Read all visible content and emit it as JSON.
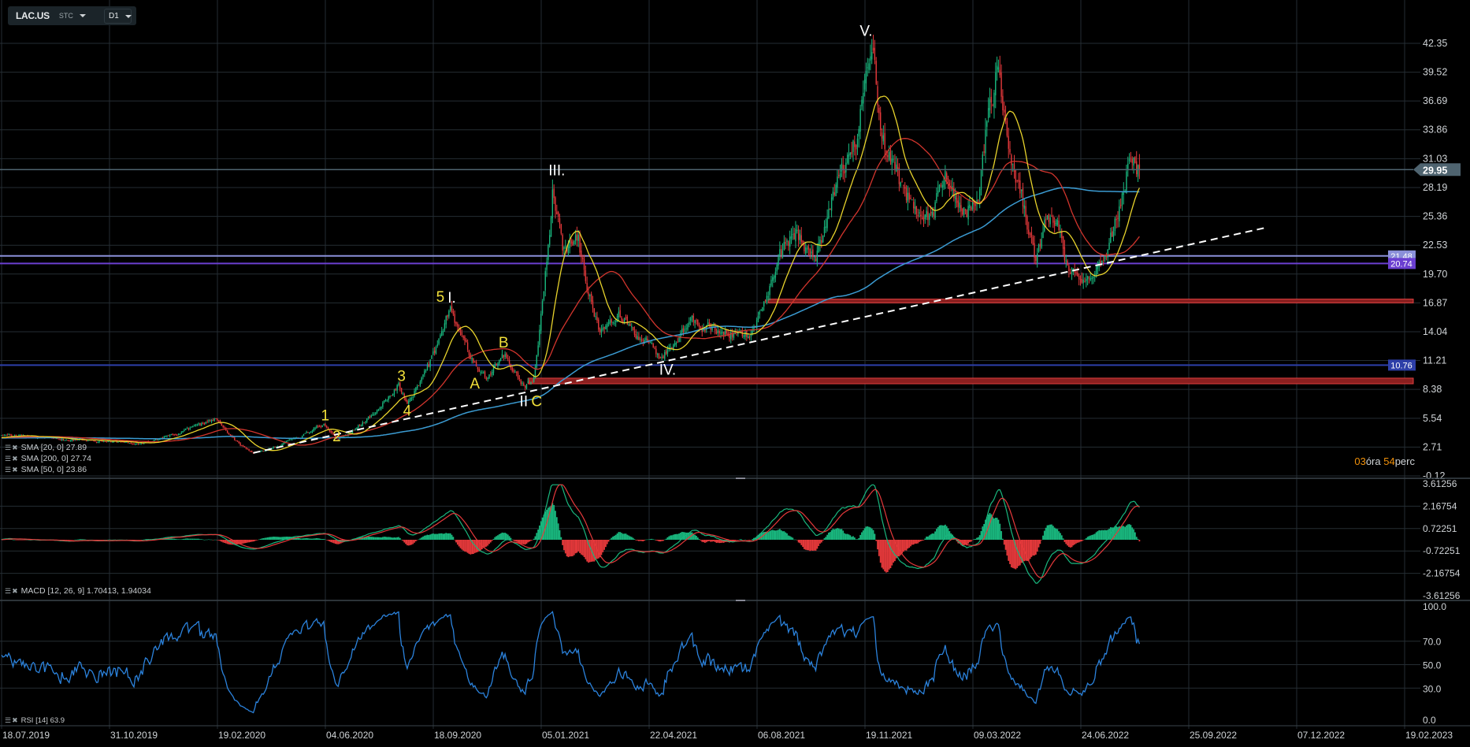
{
  "toolbar": {
    "symbol": "LAC.US",
    "market": "STC",
    "timeframe": "D1"
  },
  "legends": {
    "sma20": "SMA [20, 0] 27.89",
    "sma200": "SMA [200, 0] 27.74",
    "sma50": "SMA [50, 0] 23.86",
    "macd": "MACD [12, 26, 9] 1.70413, 1.94034",
    "rsi": "RSI [14] 63.9"
  },
  "countdown": {
    "hours": "03",
    "hours_unit": "óra",
    "minutes": "54",
    "minutes_unit": "perc"
  },
  "current_price": {
    "value": 29.95,
    "label": "29.95"
  },
  "levels": [
    {
      "value": 21.48,
      "label": "21.48",
      "color": "#8b90d9"
    },
    {
      "value": 20.74,
      "label": "20.74",
      "color": "#6b3fd1"
    },
    {
      "value": 10.76,
      "label": "10.76",
      "color": "#2d3fa8"
    }
  ],
  "zones": [
    {
      "low": 16.87,
      "high": 17.24,
      "start_bar": 533
    },
    {
      "low": 8.93,
      "high": 9.48,
      "start_bar": 366
    }
  ],
  "trendline": {
    "start": {
      "bar": 175,
      "price": 2.14
    },
    "end": {
      "bar": 879,
      "price": 24.26
    }
  },
  "wave_labels": [
    {
      "text": "V.",
      "bar": 601,
      "price": 43.7,
      "color": "#ffffff"
    },
    {
      "text": "III.",
      "bar": 386,
      "price": 30.0,
      "color": "#ffffff"
    },
    {
      "text": "5",
      "bar": 305,
      "price": 17.6,
      "color": "#f2e03a"
    },
    {
      "text": "I.",
      "bar": 313,
      "price": 17.5,
      "color": "#ffffff"
    },
    {
      "text": "1",
      "bar": 225,
      "price": 5.95,
      "color": "#f2e03a"
    },
    {
      "text": "2",
      "bar": 233,
      "price": 3.92,
      "color": "#f2e03a"
    },
    {
      "text": "3",
      "bar": 278,
      "price": 9.81,
      "color": "#f2e03a"
    },
    {
      "text": "4",
      "bar": 282,
      "price": 6.41,
      "color": "#f2e03a"
    },
    {
      "text": "A",
      "bar": 329,
      "price": 9.07,
      "color": "#f2e03a"
    },
    {
      "text": "B",
      "bar": 349,
      "price": 13.11,
      "color": "#f2e03a"
    },
    {
      "text": "II",
      "bar": 363,
      "price": 7.33,
      "color": "#ffffff"
    },
    {
      "text": "C",
      "bar": 372,
      "price": 7.33,
      "color": "#f2e03a"
    },
    {
      "text": "IV.",
      "bar": 463,
      "price": 10.45,
      "color": "#ffffff"
    }
  ],
  "chart_data": {
    "type": "candlestick",
    "title": "LAC.US D1",
    "x_unit": "trading-day index from 18.07.2019",
    "keypoints": [
      [
        0,
        3.9
      ],
      [
        97,
        3.1
      ],
      [
        149,
        5.5
      ],
      [
        175,
        2.1
      ],
      [
        224,
        5.0
      ],
      [
        234,
        3.5
      ],
      [
        276,
        9.0
      ],
      [
        282,
        7.0
      ],
      [
        312,
        16.5
      ],
      [
        328,
        11.0
      ],
      [
        338,
        9.5
      ],
      [
        349,
        11.5
      ],
      [
        364,
        8.5
      ],
      [
        370,
        9.5
      ],
      [
        377,
        18.0
      ],
      [
        383,
        28.0
      ],
      [
        390,
        22.0
      ],
      [
        400,
        23.0
      ],
      [
        410,
        17.0
      ],
      [
        416,
        14.0
      ],
      [
        429,
        16.0
      ],
      [
        449,
        13.0
      ],
      [
        458,
        11.5
      ],
      [
        481,
        15.0
      ],
      [
        501,
        14.0
      ],
      [
        520,
        13.5
      ],
      [
        530,
        17.0
      ],
      [
        543,
        22.0
      ],
      [
        553,
        24.0
      ],
      [
        566,
        21.0
      ],
      [
        576,
        26.0
      ],
      [
        585,
        30.0
      ],
      [
        595,
        33.0
      ],
      [
        602,
        40.0
      ],
      [
        605,
        41.5
      ],
      [
        612,
        33.0
      ],
      [
        621,
        30.0
      ],
      [
        631,
        27.0
      ],
      [
        644,
        25.0
      ],
      [
        657,
        29.0
      ],
      [
        670,
        26.0
      ],
      [
        680,
        28.0
      ],
      [
        686,
        36.0
      ],
      [
        693,
        40.0
      ],
      [
        700,
        32.0
      ],
      [
        709,
        28.0
      ],
      [
        719,
        21.0
      ],
      [
        726,
        25.0
      ],
      [
        735,
        24.0
      ],
      [
        742,
        20.0
      ],
      [
        755,
        19.5
      ],
      [
        765,
        21.0
      ],
      [
        775,
        25.0
      ],
      [
        784,
        31.0
      ],
      [
        791,
        29.95
      ]
    ],
    "last_bar": 791,
    "ylim": [
      -0.12,
      42.35
    ],
    "price_axis": [
      "42.35",
      "39.52",
      "36.69",
      "33.86",
      "31.03",
      "28.19",
      "25.36",
      "22.53",
      "19.70",
      "16.87",
      "14.04",
      "11.21",
      "8.38",
      "5.54",
      "2.71",
      "-0.12"
    ],
    "macd_axis": [
      "3.61256",
      "2.16754",
      "0.72251",
      "-0.72251",
      "-2.16754",
      "-3.61256"
    ],
    "macd_ylim": [
      -3.61256,
      3.61256
    ],
    "rsi_axis": [
      "100.0",
      "70.0",
      "50.0",
      "30.0",
      "0.0"
    ],
    "rsi_ylim": [
      0,
      100
    ],
    "time_axis": [
      "18.07.2019",
      "31.10.2019",
      "19.02.2020",
      "04.06.2020",
      "18.09.2020",
      "05.01.2021",
      "22.04.2021",
      "06.08.2021",
      "19.11.2021",
      "09.03.2022",
      "24.06.2022",
      "25.09.2022",
      "07.12.2022",
      "19.02.2023"
    ],
    "series_colors": {
      "up": "#19b77e",
      "down": "#e5393b",
      "sma20": "#e8d32c",
      "sma50": "#d2352d",
      "sma200": "#3b9bd2",
      "macd": "#19b77e",
      "signal": "#e5393b",
      "rsi": "#2b82dc"
    }
  }
}
